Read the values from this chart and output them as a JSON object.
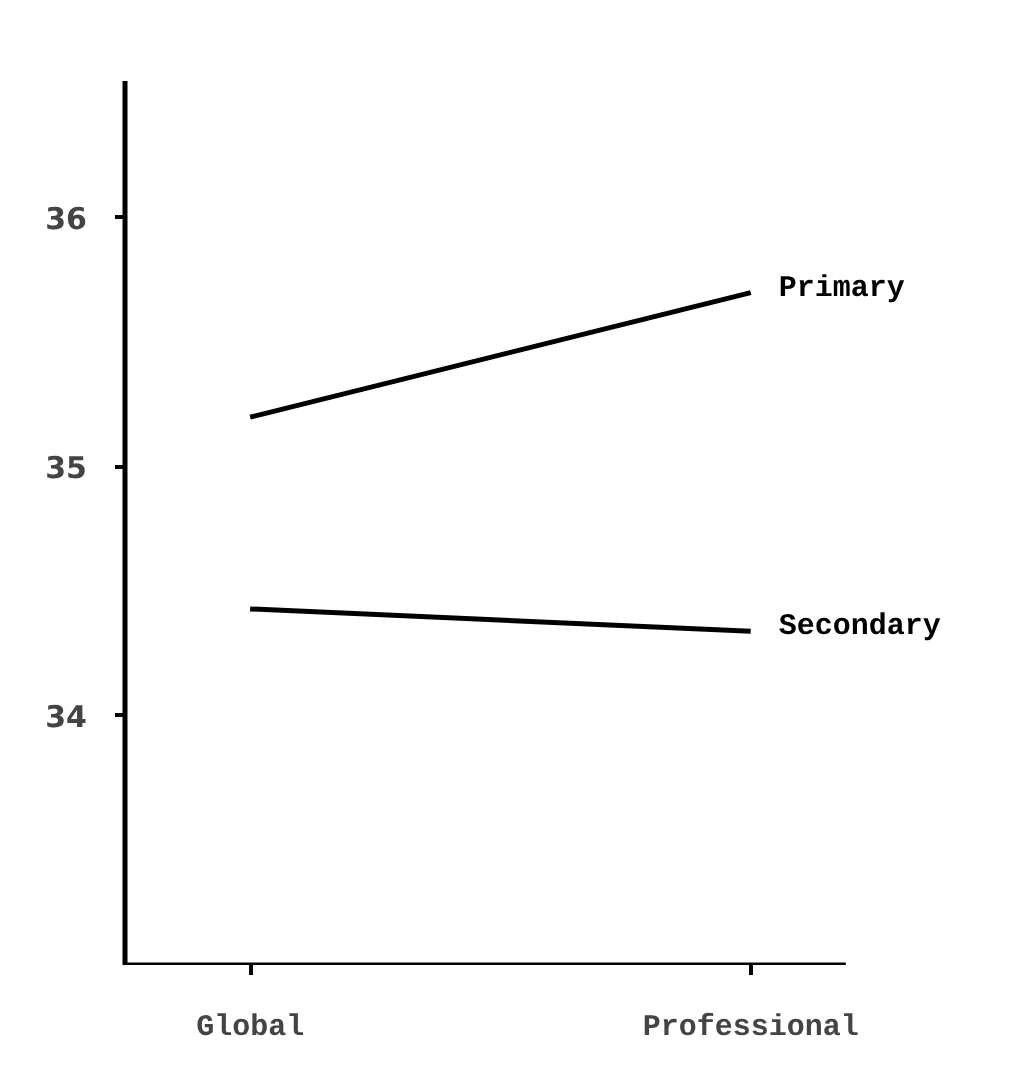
{
  "chart_data": {
    "type": "line",
    "categories": [
      "Global",
      "Professional"
    ],
    "series": [
      {
        "name": "Primary",
        "color": "#000000",
        "values": [
          35.2,
          35.7
        ]
      },
      {
        "name": "Secondary",
        "color": "#000000",
        "values": [
          34.43,
          34.34
        ]
      }
    ],
    "ylim": [
      33.0,
      36.55
    ],
    "yticks": [
      34,
      35,
      36
    ],
    "grid": false,
    "marker": "none",
    "line_style": "solid"
  }
}
